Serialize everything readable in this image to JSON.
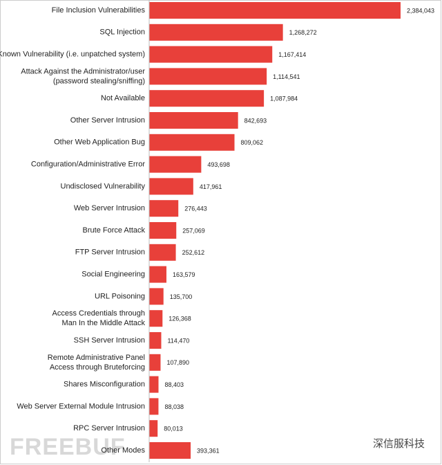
{
  "chart_data": {
    "type": "hbar",
    "color": "#e8403a",
    "categories": [
      "File Inclusion Vulnerabilities",
      "SQL Injection",
      "Known Vulnerability (i.e. unpatched system)",
      [
        "Attack Against the Administrator/user",
        "(password stealing/sniffing)"
      ],
      "Not Available",
      "Other Server Intrusion",
      "Other Web Application Bug",
      "Configuration/Administrative Error",
      "Undisclosed Vulnerability",
      "Web Server Intrusion",
      "Brute Force Attack",
      "FTP Server Intrusion",
      "Social Engineering",
      "URL Poisoning",
      [
        "Access Credentials through",
        "Man In the Middle Attack"
      ],
      "SSH Server Intrusion",
      [
        "Remote Administrative Panel",
        "Access through Bruteforcing"
      ],
      "Shares Misconfiguration",
      "Web Server External Module Intrusion",
      "RPC Server Intrusion",
      "Other Modes"
    ],
    "values": [
      2384043,
      1268272,
      1167414,
      1114541,
      1087984,
      842693,
      809062,
      493698,
      417961,
      276443,
      257069,
      252612,
      163579,
      135700,
      126368,
      114470,
      107890,
      88403,
      88038,
      80013,
      393361
    ],
    "value_labels": [
      "2,384,043",
      "1,268,272",
      "1,167,414",
      "1,114,541",
      "1,087,984",
      "842,693",
      "809,062",
      "493,698",
      "417,961",
      "276,443",
      "257,069",
      "252,612",
      "163,579",
      "135,700",
      "126,368",
      "114,470",
      "107,890",
      "88,403",
      "88,038",
      "80,013",
      "393,361"
    ],
    "watermarks": [
      "FREEBUF",
      "深信服科技"
    ]
  }
}
